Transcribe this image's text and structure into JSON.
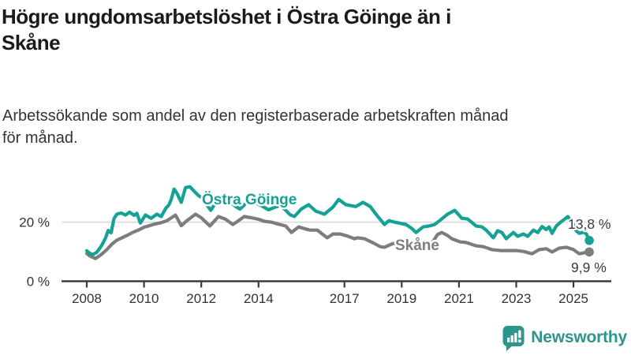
{
  "header": {
    "title": "Högre ungdomsarbetslöshet i Östra Göinge än i Skåne",
    "title_lines": [
      "Högre ungdomsarbetslöshet i Östra Göinge än i",
      "Skåne"
    ],
    "subtitle": "Arbetssökande som andel av den registerbaserade arbetskraften månad för månad.",
    "subtitle_lines": [
      "Arbetssökande som andel av den registerbaserade arbetskraften månad",
      "för månad."
    ]
  },
  "chart_data": {
    "type": "line",
    "title": "Högre ungdomsarbetslöshet i Östra Göinge än i Skåne",
    "subtitle": "Arbetssökande som andel av den registerbaserade arbetskraften månad för månad.",
    "x_axis": {
      "unit": "year",
      "range": [
        2007.9,
        2026.3
      ],
      "ticks": [
        {
          "year": 2008,
          "label": "2008"
        },
        {
          "year": 2010,
          "label": "2010"
        },
        {
          "year": 2012,
          "label": "2012"
        },
        {
          "year": 2014,
          "label": "2014"
        },
        {
          "year": 2017,
          "label": "2017"
        },
        {
          "year": 2019,
          "label": "2019"
        },
        {
          "year": 2021,
          "label": "2021"
        },
        {
          "year": 2023,
          "label": "2023"
        },
        {
          "year": 2025,
          "label": "2025"
        }
      ]
    },
    "y_axis": {
      "unit": "%",
      "range": [
        0,
        34
      ],
      "ticks": [
        {
          "value": 0,
          "label": "0 %"
        },
        {
          "value": 20,
          "label": "20 %"
        }
      ],
      "gridlines": [
        20
      ]
    },
    "legend_position": "inline-labels-on-lines",
    "series": [
      {
        "name": "Östra Göinge",
        "color": "#16a195",
        "end_label": "13,8 %",
        "end_value": 13.8,
        "points": [
          [
            2008.0,
            10.3
          ],
          [
            2008.08,
            9.6
          ],
          [
            2008.2,
            9.0
          ],
          [
            2008.35,
            9.8
          ],
          [
            2008.5,
            11.8
          ],
          [
            2008.65,
            14.5
          ],
          [
            2008.75,
            17.2
          ],
          [
            2008.85,
            16.4
          ],
          [
            2008.95,
            21.2
          ],
          [
            2009.05,
            22.7
          ],
          [
            2009.2,
            23.1
          ],
          [
            2009.35,
            22.4
          ],
          [
            2009.5,
            23.4
          ],
          [
            2009.65,
            22.3
          ],
          [
            2009.75,
            23.0
          ],
          [
            2009.87,
            19.7
          ],
          [
            2010.05,
            22.4
          ],
          [
            2010.25,
            21.3
          ],
          [
            2010.45,
            22.7
          ],
          [
            2010.6,
            21.9
          ],
          [
            2010.75,
            24.5
          ],
          [
            2010.87,
            25.9
          ],
          [
            2010.95,
            27.7
          ],
          [
            2011.05,
            31.2
          ],
          [
            2011.15,
            29.8
          ],
          [
            2011.3,
            26.7
          ],
          [
            2011.45,
            31.7
          ],
          [
            2011.6,
            32.0
          ],
          [
            2011.75,
            30.5
          ],
          [
            2011.9,
            29.0
          ],
          [
            2012.05,
            28.0
          ],
          [
            2012.2,
            25.8
          ],
          [
            2012.33,
            24.0
          ],
          [
            2012.5,
            26.5
          ],
          [
            2012.7,
            28.3
          ],
          [
            2012.9,
            27.6
          ],
          [
            2013.05,
            26.6
          ],
          [
            2013.2,
            25.3
          ],
          [
            2013.35,
            24.4
          ],
          [
            2013.55,
            26.3
          ],
          [
            2013.75,
            27.3
          ],
          [
            2013.95,
            26.3
          ],
          [
            2014.15,
            25.3
          ],
          [
            2014.35,
            24.2
          ],
          [
            2014.55,
            25.0
          ],
          [
            2014.75,
            25.6
          ],
          [
            2014.95,
            24.0
          ],
          [
            2015.1,
            22.5
          ],
          [
            2015.25,
            21.9
          ],
          [
            2015.5,
            24.5
          ],
          [
            2015.75,
            25.9
          ],
          [
            2016.0,
            23.7
          ],
          [
            2016.3,
            22.7
          ],
          [
            2016.6,
            25.1
          ],
          [
            2016.8,
            27.7
          ],
          [
            2017.05,
            25.9
          ],
          [
            2017.4,
            25.3
          ],
          [
            2017.65,
            26.7
          ],
          [
            2017.9,
            25.3
          ],
          [
            2018.1,
            22.7
          ],
          [
            2018.4,
            19.2
          ],
          [
            2018.55,
            20.5
          ],
          [
            2018.75,
            20.0
          ],
          [
            2018.9,
            19.7
          ],
          [
            2019.15,
            19.2
          ],
          [
            2019.35,
            17.9
          ],
          [
            2019.5,
            16.5
          ],
          [
            2019.75,
            18.4
          ],
          [
            2019.95,
            18.7
          ],
          [
            2020.15,
            19.2
          ],
          [
            2020.4,
            21.1
          ],
          [
            2020.6,
            22.7
          ],
          [
            2020.85,
            24.0
          ],
          [
            2021.1,
            21.3
          ],
          [
            2021.3,
            21.1
          ],
          [
            2021.6,
            18.7
          ],
          [
            2021.8,
            18.4
          ],
          [
            2021.95,
            17.3
          ],
          [
            2022.2,
            14.7
          ],
          [
            2022.35,
            17.1
          ],
          [
            2022.5,
            16.5
          ],
          [
            2022.65,
            14.4
          ],
          [
            2022.9,
            16.5
          ],
          [
            2023.05,
            15.2
          ],
          [
            2023.25,
            16.0
          ],
          [
            2023.4,
            15.2
          ],
          [
            2023.6,
            17.3
          ],
          [
            2023.75,
            16.5
          ],
          [
            2023.9,
            18.5
          ],
          [
            2024.05,
            17.5
          ],
          [
            2024.15,
            18.4
          ],
          [
            2024.25,
            16.2
          ],
          [
            2024.4,
            18.7
          ],
          [
            2024.55,
            20.0
          ],
          [
            2024.7,
            21.1
          ],
          [
            2024.8,
            21.9
          ],
          [
            2024.95,
            20.0
          ],
          [
            2025.1,
            17.0
          ],
          [
            2025.2,
            16.2
          ],
          [
            2025.35,
            16.6
          ],
          [
            2025.45,
            16.0
          ],
          [
            2025.55,
            13.8
          ]
        ]
      },
      {
        "name": "Skåne",
        "color": "#7d7d7d",
        "end_label": "9,9 %",
        "end_value": 9.9,
        "points": [
          [
            2008.0,
            9.4
          ],
          [
            2008.1,
            8.6
          ],
          [
            2008.3,
            7.7
          ],
          [
            2008.5,
            9.0
          ],
          [
            2008.7,
            10.7
          ],
          [
            2008.85,
            12.3
          ],
          [
            2009.05,
            13.9
          ],
          [
            2009.25,
            14.8
          ],
          [
            2009.45,
            15.7
          ],
          [
            2009.6,
            16.5
          ],
          [
            2009.8,
            17.3
          ],
          [
            2010.0,
            18.3
          ],
          [
            2010.15,
            18.7
          ],
          [
            2010.35,
            19.3
          ],
          [
            2010.55,
            19.7
          ],
          [
            2010.8,
            20.5
          ],
          [
            2011.1,
            22.4
          ],
          [
            2011.3,
            18.8
          ],
          [
            2011.5,
            20.5
          ],
          [
            2011.8,
            22.7
          ],
          [
            2012.0,
            21.5
          ],
          [
            2012.3,
            18.7
          ],
          [
            2012.6,
            21.9
          ],
          [
            2012.85,
            21.0
          ],
          [
            2013.1,
            19.2
          ],
          [
            2013.3,
            20.5
          ],
          [
            2013.5,
            21.9
          ],
          [
            2013.75,
            21.5
          ],
          [
            2014.0,
            21.0
          ],
          [
            2014.2,
            20.3
          ],
          [
            2014.45,
            20.0
          ],
          [
            2014.7,
            19.3
          ],
          [
            2014.95,
            18.7
          ],
          [
            2015.15,
            16.5
          ],
          [
            2015.4,
            18.4
          ],
          [
            2015.6,
            17.8
          ],
          [
            2015.8,
            17.3
          ],
          [
            2016.05,
            17.3
          ],
          [
            2016.4,
            14.7
          ],
          [
            2016.6,
            16.0
          ],
          [
            2016.85,
            16.0
          ],
          [
            2017.1,
            15.3
          ],
          [
            2017.35,
            14.4
          ],
          [
            2017.45,
            14.7
          ],
          [
            2017.7,
            14.4
          ],
          [
            2018.0,
            13.0
          ],
          [
            2018.25,
            11.7
          ],
          [
            2018.4,
            11.5
          ],
          [
            2018.7,
            12.8
          ],
          [
            2018.95,
            12.5
          ],
          [
            2019.2,
            12.0
          ],
          [
            2019.45,
            11.3
          ],
          [
            2019.7,
            11.8
          ],
          [
            2019.95,
            12.3
          ],
          [
            2020.1,
            13.5
          ],
          [
            2020.25,
            15.8
          ],
          [
            2020.4,
            16.5
          ],
          [
            2020.6,
            15.5
          ],
          [
            2020.75,
            14.4
          ],
          [
            2021.05,
            13.3
          ],
          [
            2021.25,
            13.1
          ],
          [
            2021.6,
            12.0
          ],
          [
            2021.85,
            11.7
          ],
          [
            2022.15,
            10.7
          ],
          [
            2022.45,
            10.4
          ],
          [
            2022.75,
            10.4
          ],
          [
            2023.0,
            10.4
          ],
          [
            2023.25,
            10.1
          ],
          [
            2023.55,
            9.3
          ],
          [
            2023.8,
            10.7
          ],
          [
            2024.05,
            11.0
          ],
          [
            2024.25,
            9.9
          ],
          [
            2024.5,
            11.2
          ],
          [
            2024.75,
            11.5
          ],
          [
            2025.0,
            10.7
          ],
          [
            2025.2,
            9.3
          ],
          [
            2025.4,
            9.7
          ],
          [
            2025.55,
            9.9
          ]
        ]
      }
    ],
    "colors": {
      "ostra_goinge": "#16a195",
      "skane": "#7d7d7d",
      "gridline": "#d9d9d9",
      "axis": "#3b3b3b",
      "axis_text": "#333333",
      "value_label_text": "#3a3a3a"
    }
  },
  "branding": {
    "logo_text": "Newsworthy",
    "logo_color": "#2f948c",
    "logo_icon": "bar-chart-speech-bubble-icon"
  }
}
